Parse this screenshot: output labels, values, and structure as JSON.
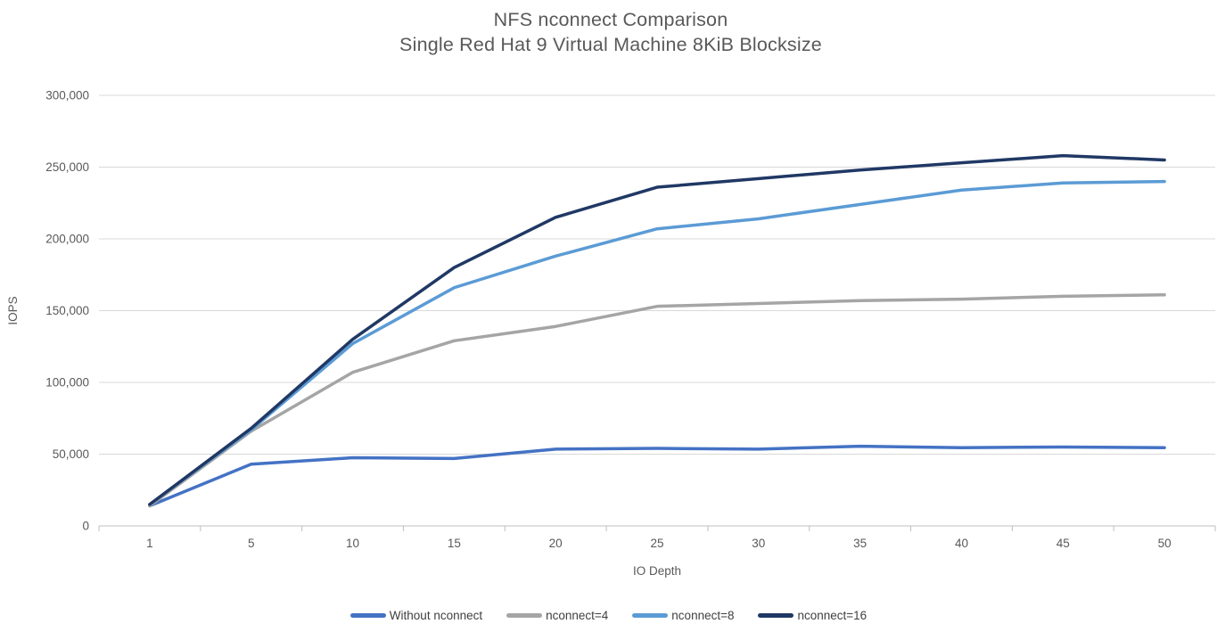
{
  "title": {
    "line1": "NFS nconnect Comparison",
    "line2": "Single Red Hat 9 Virtual Machine 8KiB Blocksize"
  },
  "chart_data": {
    "type": "line",
    "title": "NFS nconnect Comparison",
    "subtitle": "Single Red Hat 9 Virtual Machine 8KiB Blocksize",
    "xlabel": "IO Depth",
    "ylabel": "IOPS",
    "categories": [
      "1",
      "5",
      "10",
      "15",
      "20",
      "25",
      "30",
      "35",
      "40",
      "45",
      "50"
    ],
    "series": [
      {
        "name": "Without nconnect",
        "color": "#4472C4",
        "values": [
          14000,
          43000,
          47500,
          47000,
          53500,
          54000,
          53500,
          55500,
          54500,
          55000,
          54500
        ]
      },
      {
        "name": "nconnect=4",
        "color": "#A5A5A5",
        "values": [
          14000,
          66000,
          107000,
          129000,
          139000,
          153000,
          155000,
          157000,
          158000,
          160000,
          161000
        ]
      },
      {
        "name": "nconnect=8",
        "color": "#5B9BD5",
        "values": [
          15000,
          67000,
          127000,
          166000,
          188000,
          207000,
          214000,
          224000,
          234000,
          239000,
          240000
        ]
      },
      {
        "name": "nconnect=16",
        "color": "#203864",
        "values": [
          15000,
          68000,
          130000,
          180000,
          215000,
          236000,
          242000,
          248000,
          253000,
          258000,
          255000
        ]
      }
    ],
    "ylim": [
      0,
      300000
    ],
    "ytick_step": 50000,
    "ytick_labels": [
      "0",
      "50,000",
      "100,000",
      "150,000",
      "200,000",
      "250,000",
      "300,000"
    ],
    "grid": "horizontal",
    "legend_position": "bottom",
    "colors": {
      "gridline": "#D9D9D9",
      "axis": "#BFBFBF",
      "tick_text": "#595959",
      "legend_text": "#404040",
      "title_text": "#595959"
    }
  }
}
